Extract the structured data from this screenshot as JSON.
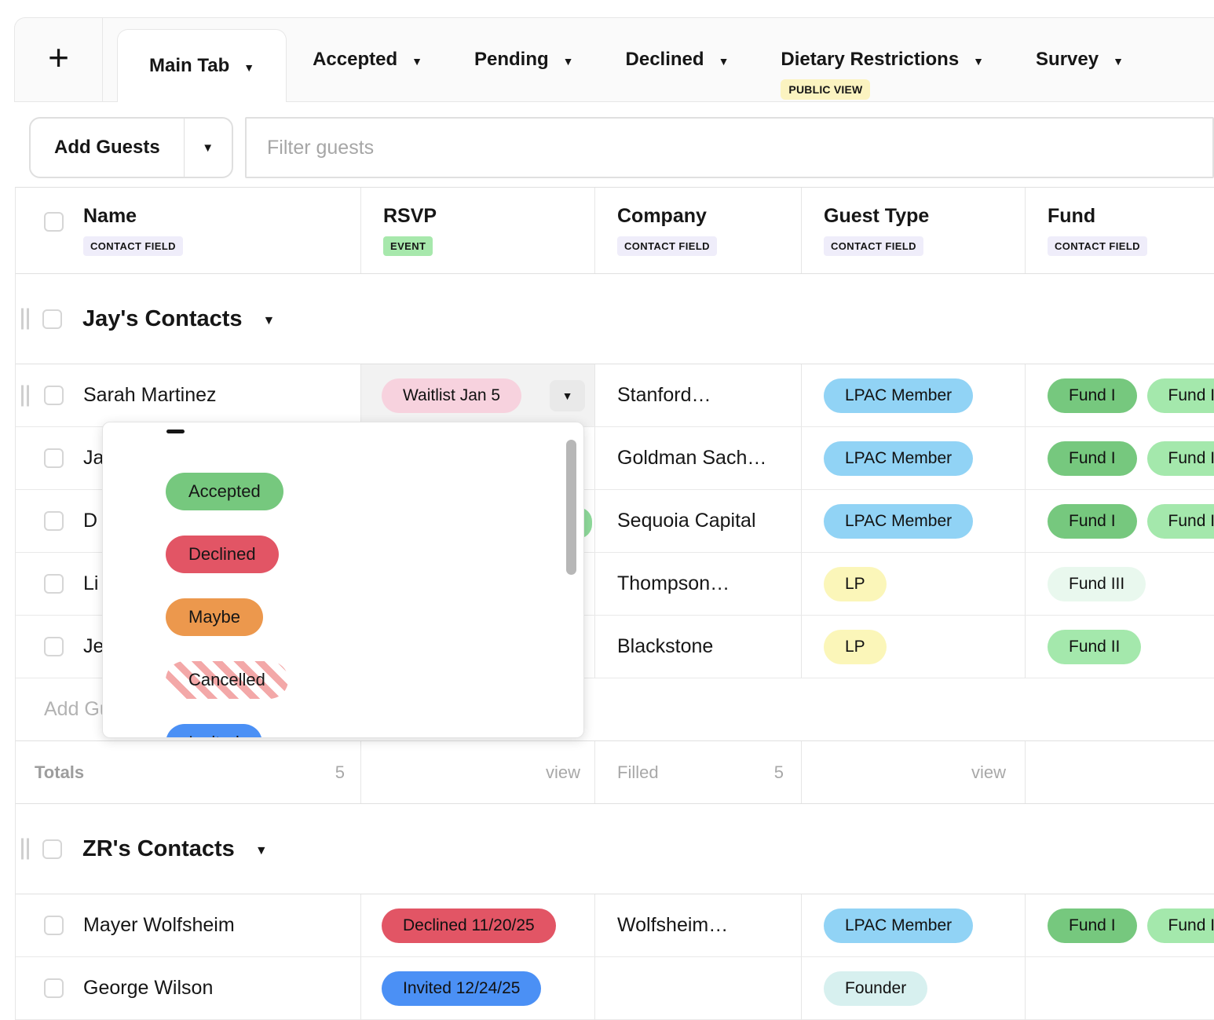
{
  "icons": {
    "caret_down": "▼",
    "plus": "+"
  },
  "colors": {
    "accent_green": "#76c87e",
    "light_green": "#a4e8ac",
    "pale_green": "#e9f8ee",
    "sky_blue": "#91d3f5",
    "solid_blue": "#4b90f5",
    "red": "#e25565",
    "orange": "#ec984d",
    "pink": "#f7d2de",
    "yellow": "#fbf6b9",
    "pale_teal": "#d7f0ef",
    "badge_lavender": "#efedfa",
    "badge_green": "#a7e8ac",
    "badge_yellow": "#fbf3c0"
  },
  "tab_bar": {
    "tabs": [
      {
        "label": "Main Tab",
        "active": true
      },
      {
        "label": "Accepted"
      },
      {
        "label": "Pending"
      },
      {
        "label": "Declined"
      },
      {
        "label": "Dietary Restrictions",
        "badge": "PUBLIC VIEW"
      },
      {
        "label": "Survey"
      }
    ]
  },
  "toolbar": {
    "add_guests": "Add Guests",
    "filter_placeholder": "Filter guests"
  },
  "table": {
    "columns": [
      {
        "label": "Name",
        "tag": "CONTACT FIELD"
      },
      {
        "label": "RSVP",
        "tag": "EVENT"
      },
      {
        "label": "Company",
        "tag": "CONTACT FIELD"
      },
      {
        "label": "Guest Type",
        "tag": "CONTACT FIELD"
      },
      {
        "label": "Fund",
        "tag": "CONTACT FIELD"
      }
    ]
  },
  "groups": [
    {
      "title": "Jay's Contacts",
      "rows": [
        {
          "name": "Sarah Martinez",
          "rsvp": "Waitlist Jan 5",
          "company": "Stanford…",
          "guest_type": "LPAC Member",
          "funds": [
            "Fund I",
            "Fund II"
          ]
        },
        {
          "name": "Ja",
          "company": "Goldman Sach…",
          "guest_type": "LPAC Member",
          "funds": [
            "Fund I",
            "Fund II"
          ]
        },
        {
          "name": "D",
          "company": "Sequoia Capital",
          "guest_type": "LPAC Member",
          "funds": [
            "Fund I",
            "Fund II"
          ]
        },
        {
          "name": "Li",
          "company": "Thompson…",
          "guest_type": "LP",
          "funds": [
            "Fund III"
          ]
        },
        {
          "name": "Je",
          "company": "Blackstone",
          "guest_type": "LP",
          "funds": [
            "Fund II"
          ]
        }
      ],
      "add_row_label": "Add Guest",
      "totals": {
        "label": "Totals",
        "count": "5",
        "rsvp_link": "view",
        "filled_label": "Filled",
        "filled_count": "5",
        "guest_type_link": "view"
      }
    },
    {
      "title": "ZR's Contacts",
      "rows": [
        {
          "name": "Mayer Wolfsheim",
          "rsvp": "Declined 11/20/25",
          "company": "Wolfsheim…",
          "guest_type": "LPAC Member",
          "funds": [
            "Fund I",
            "Fund II"
          ]
        },
        {
          "name": "George Wilson",
          "rsvp": "Invited 12/24/25",
          "guest_type": "Founder",
          "funds": []
        }
      ]
    }
  ],
  "rsvp_dropdown": {
    "clear_option": "–",
    "options": [
      {
        "label": "Accepted",
        "style": "green"
      },
      {
        "label": "Declined",
        "style": "red"
      },
      {
        "label": "Maybe",
        "style": "orange"
      },
      {
        "label": "Cancelled",
        "style": "striped"
      },
      {
        "label": "Invited",
        "style": "blue"
      }
    ]
  }
}
